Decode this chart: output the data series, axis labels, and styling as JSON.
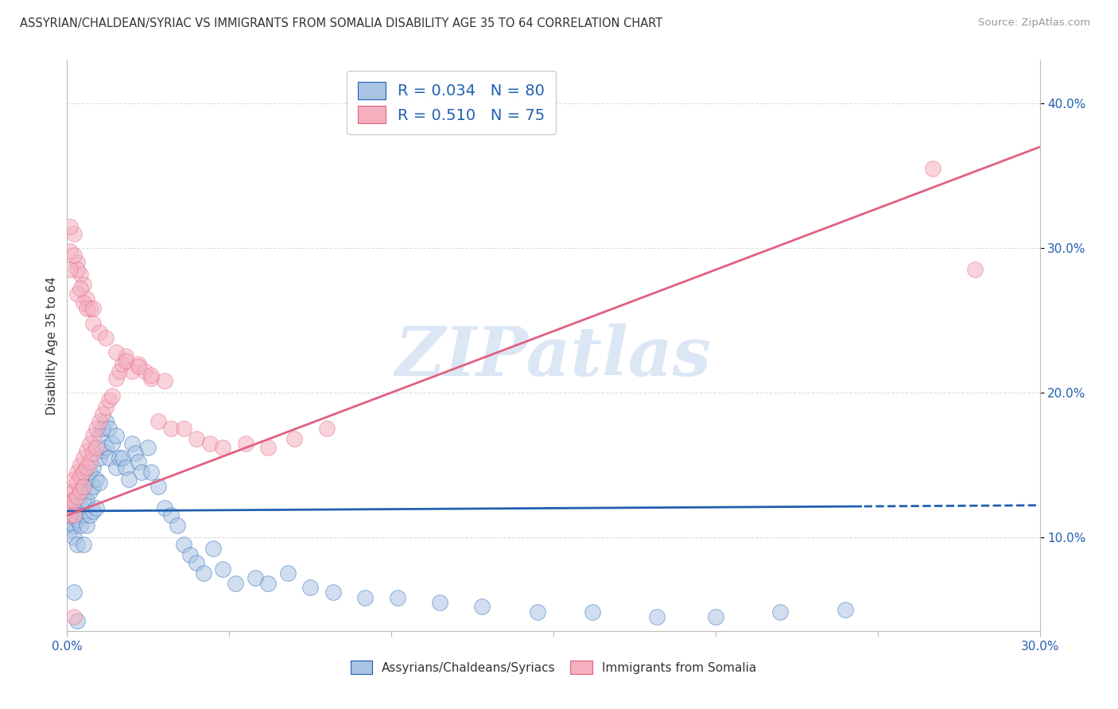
{
  "title": "ASSYRIAN/CHALDEAN/SYRIAC VS IMMIGRANTS FROM SOMALIA DISABILITY AGE 35 TO 64 CORRELATION CHART",
  "source": "Source: ZipAtlas.com",
  "ylabel": "Disability Age 35 to 64",
  "ylabel_right_ticks": [
    "10.0%",
    "20.0%",
    "30.0%",
    "40.0%"
  ],
  "ylabel_right_vals": [
    0.1,
    0.2,
    0.3,
    0.4
  ],
  "xmin": 0.0,
  "xmax": 0.3,
  "ymin": 0.035,
  "ymax": 0.43,
  "blue_R": 0.034,
  "blue_N": 80,
  "pink_R": 0.51,
  "pink_N": 75,
  "blue_color": "#aac4e4",
  "pink_color": "#f5b0c0",
  "blue_line_color": "#2060b0",
  "pink_line_color": "#e06080",
  "blue_line_y0": 0.118,
  "blue_line_y1": 0.122,
  "pink_line_y0": 0.115,
  "pink_line_y1": 0.37,
  "watermark_text": "ZIPatlas",
  "watermark_color": "#ccddf0",
  "background_color": "#ffffff",
  "grid_color": "#dddddd",
  "blue_scatter_x": [
    0.001,
    0.001,
    0.001,
    0.001,
    0.002,
    0.002,
    0.002,
    0.002,
    0.003,
    0.003,
    0.003,
    0.003,
    0.004,
    0.004,
    0.004,
    0.005,
    0.005,
    0.005,
    0.005,
    0.006,
    0.006,
    0.006,
    0.007,
    0.007,
    0.007,
    0.008,
    0.008,
    0.008,
    0.009,
    0.009,
    0.01,
    0.01,
    0.01,
    0.011,
    0.011,
    0.012,
    0.012,
    0.013,
    0.013,
    0.014,
    0.015,
    0.015,
    0.016,
    0.017,
    0.018,
    0.019,
    0.02,
    0.021,
    0.022,
    0.023,
    0.025,
    0.026,
    0.028,
    0.03,
    0.032,
    0.034,
    0.036,
    0.038,
    0.04,
    0.042,
    0.045,
    0.048,
    0.052,
    0.058,
    0.062,
    0.068,
    0.075,
    0.082,
    0.092,
    0.102,
    0.115,
    0.128,
    0.145,
    0.162,
    0.182,
    0.2,
    0.22,
    0.24,
    0.002,
    0.003
  ],
  "blue_scatter_y": [
    0.12,
    0.115,
    0.11,
    0.105,
    0.125,
    0.115,
    0.108,
    0.1,
    0.128,
    0.118,
    0.112,
    0.095,
    0.13,
    0.122,
    0.108,
    0.135,
    0.125,
    0.115,
    0.095,
    0.14,
    0.125,
    0.108,
    0.145,
    0.132,
    0.115,
    0.148,
    0.135,
    0.118,
    0.14,
    0.12,
    0.17,
    0.155,
    0.138,
    0.175,
    0.16,
    0.18,
    0.162,
    0.175,
    0.155,
    0.165,
    0.17,
    0.148,
    0.155,
    0.155,
    0.148,
    0.14,
    0.165,
    0.158,
    0.152,
    0.145,
    0.162,
    0.145,
    0.135,
    0.12,
    0.115,
    0.108,
    0.095,
    0.088,
    0.082,
    0.075,
    0.092,
    0.078,
    0.068,
    0.072,
    0.068,
    0.075,
    0.065,
    0.062,
    0.058,
    0.058,
    0.055,
    0.052,
    0.048,
    0.048,
    0.045,
    0.045,
    0.048,
    0.05,
    0.062,
    0.042
  ],
  "pink_scatter_x": [
    0.001,
    0.001,
    0.001,
    0.001,
    0.002,
    0.002,
    0.002,
    0.002,
    0.003,
    0.003,
    0.003,
    0.004,
    0.004,
    0.004,
    0.005,
    0.005,
    0.005,
    0.006,
    0.006,
    0.007,
    0.007,
    0.008,
    0.008,
    0.009,
    0.009,
    0.01,
    0.011,
    0.012,
    0.013,
    0.014,
    0.015,
    0.016,
    0.017,
    0.018,
    0.02,
    0.022,
    0.024,
    0.026,
    0.028,
    0.032,
    0.036,
    0.04,
    0.044,
    0.048,
    0.055,
    0.062,
    0.07,
    0.08,
    0.002,
    0.003,
    0.004,
    0.005,
    0.006,
    0.007,
    0.008,
    0.003,
    0.003,
    0.004,
    0.005,
    0.006,
    0.008,
    0.01,
    0.012,
    0.015,
    0.018,
    0.022,
    0.026,
    0.03,
    0.001,
    0.001,
    0.001,
    0.002,
    0.267,
    0.28,
    0.002
  ],
  "pink_scatter_y": [
    0.13,
    0.125,
    0.12,
    0.115,
    0.14,
    0.132,
    0.125,
    0.115,
    0.145,
    0.138,
    0.128,
    0.15,
    0.142,
    0.132,
    0.155,
    0.145,
    0.135,
    0.16,
    0.148,
    0.165,
    0.152,
    0.17,
    0.158,
    0.175,
    0.162,
    0.18,
    0.185,
    0.19,
    0.195,
    0.198,
    0.21,
    0.215,
    0.22,
    0.225,
    0.215,
    0.22,
    0.215,
    0.21,
    0.18,
    0.175,
    0.175,
    0.168,
    0.165,
    0.162,
    0.165,
    0.162,
    0.168,
    0.175,
    0.31,
    0.29,
    0.282,
    0.275,
    0.265,
    0.258,
    0.248,
    0.285,
    0.268,
    0.272,
    0.262,
    0.258,
    0.258,
    0.242,
    0.238,
    0.228,
    0.222,
    0.218,
    0.212,
    0.208,
    0.315,
    0.298,
    0.285,
    0.295,
    0.355,
    0.285,
    0.045
  ]
}
